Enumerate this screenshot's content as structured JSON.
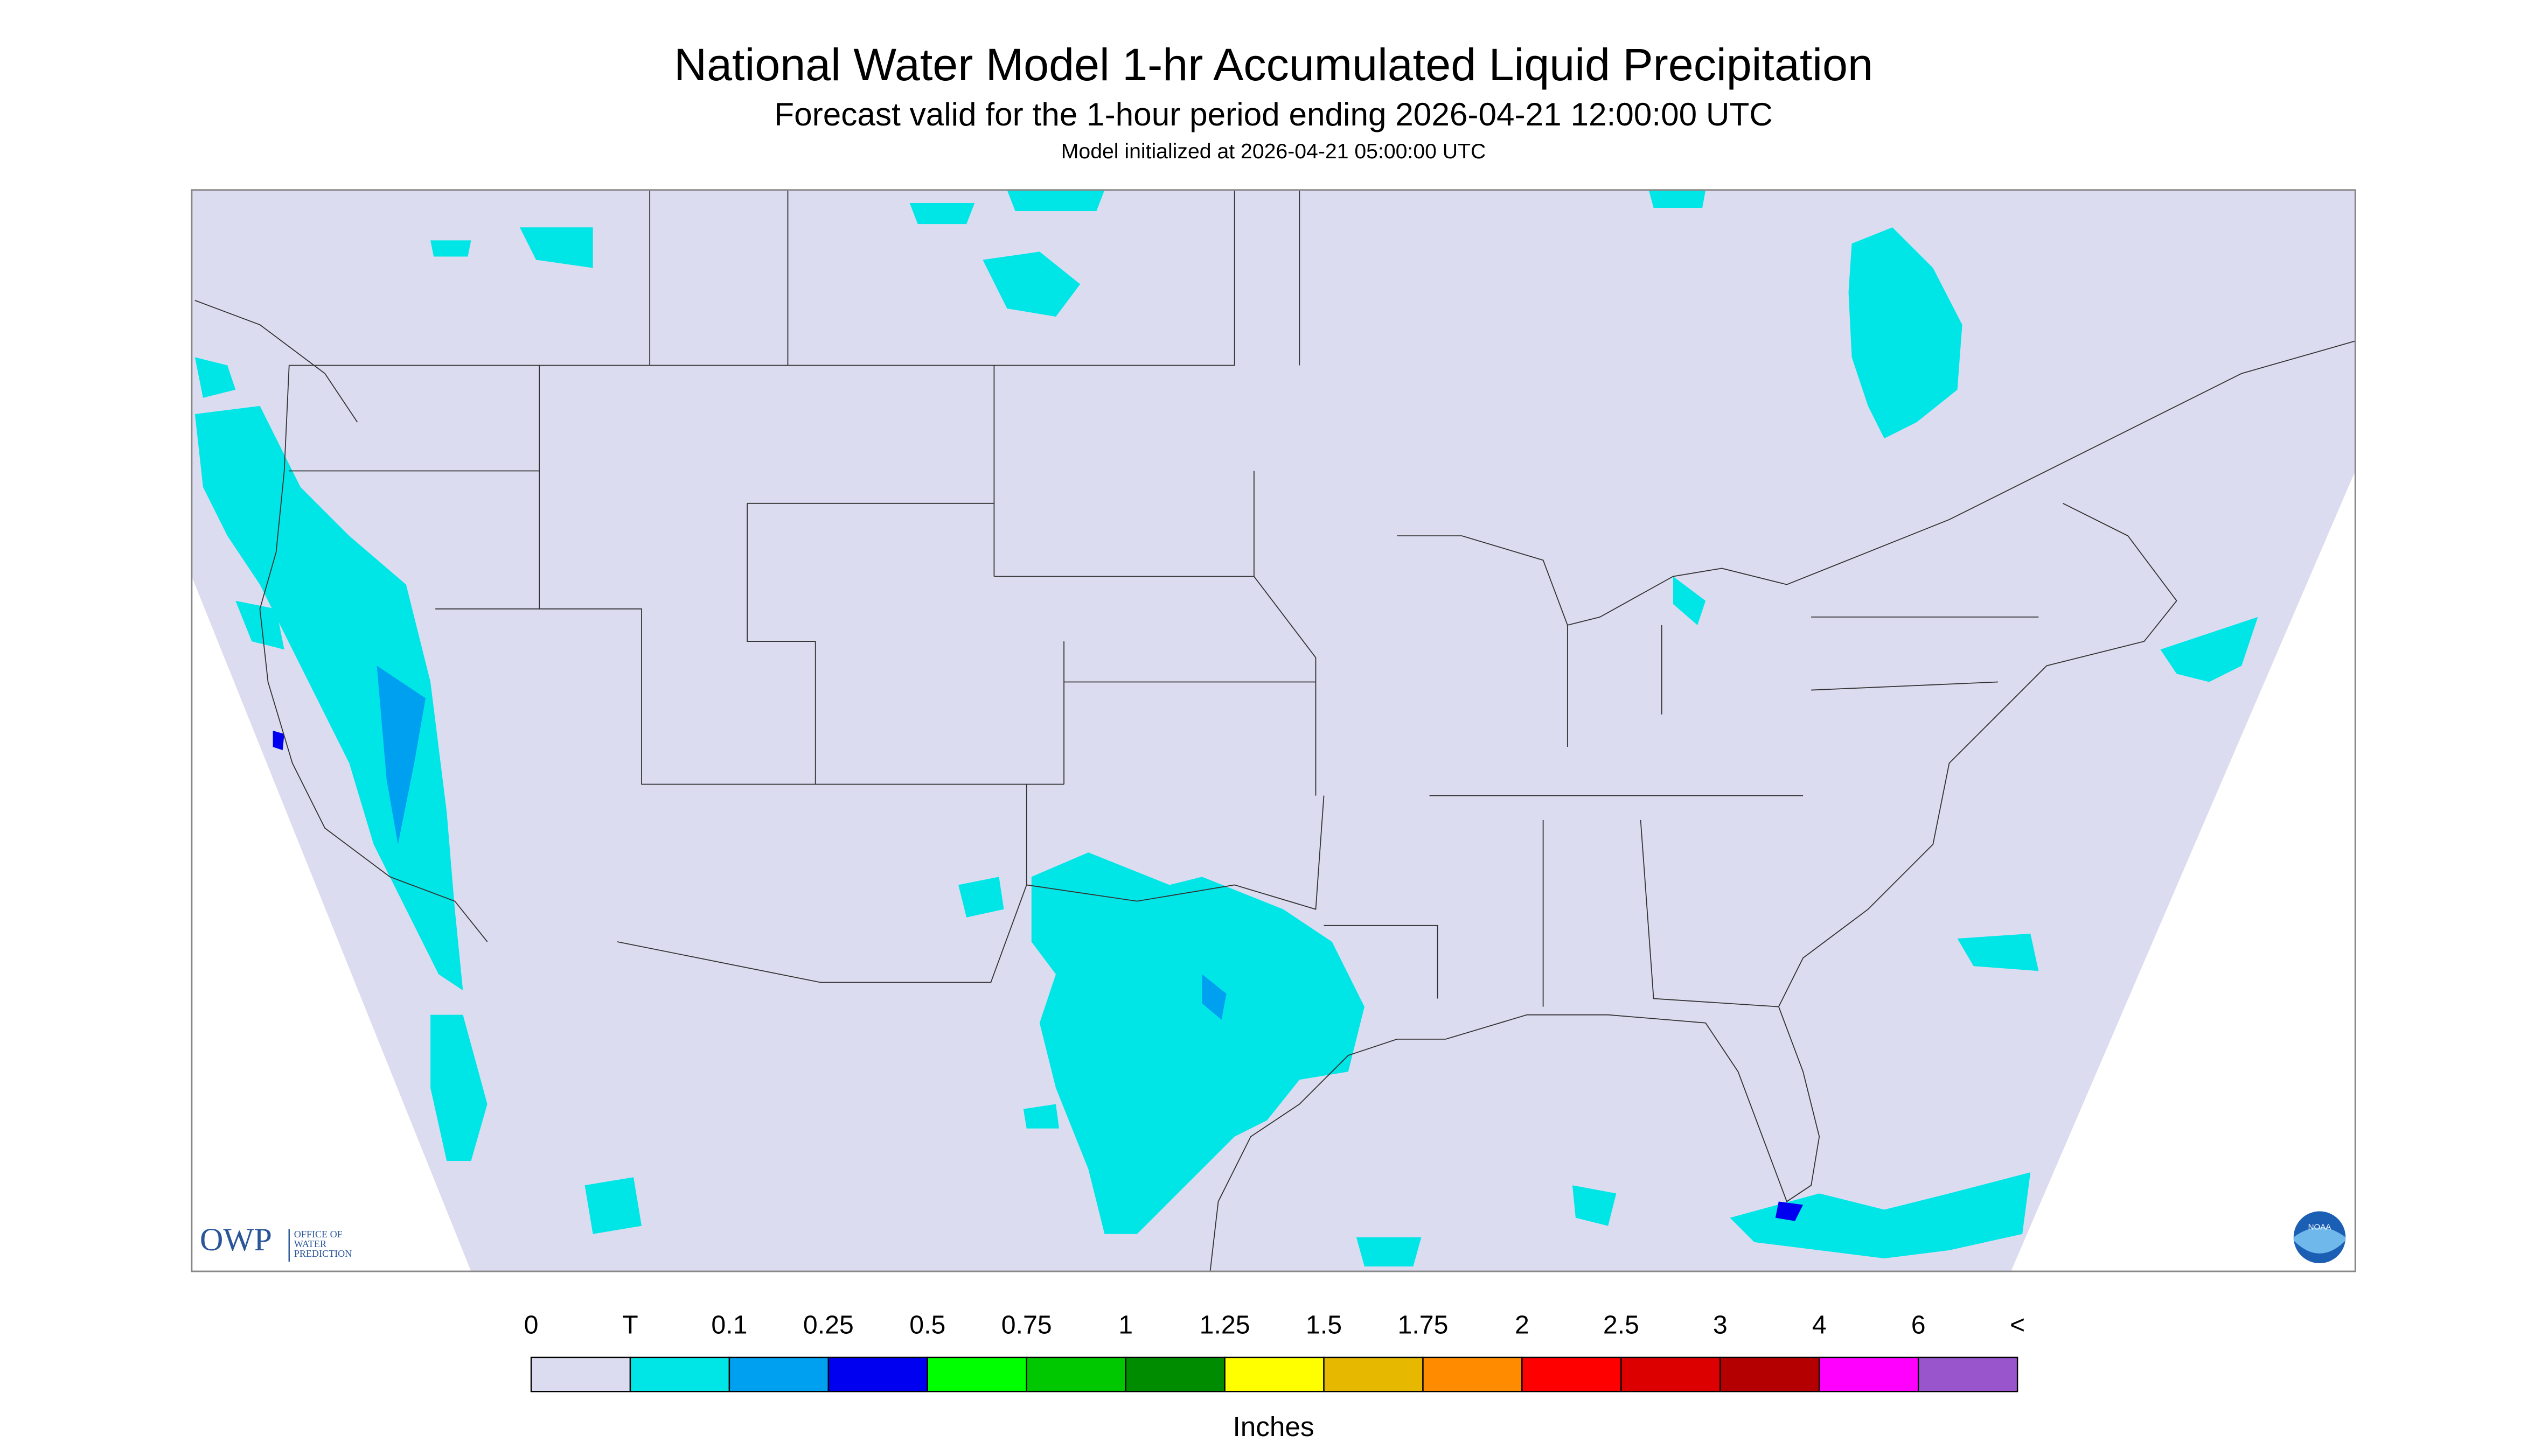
{
  "header": {
    "title": "National Water Model 1-hr Accumulated Liquid Precipitation",
    "subtitle": "Forecast valid for the 1-hour period ending 2026-04-21 12:00:00 UTC",
    "init": "Model initialized at 2026-04-21 05:00:00 UTC"
  },
  "logos": {
    "owp": "OWP",
    "owp_text": [
      "OFFICE OF",
      "WATER",
      "PREDICTION"
    ],
    "noaa": "NOAA"
  },
  "legend": {
    "labels": [
      "0",
      "T",
      "0.1",
      "0.25",
      "0.5",
      "0.75",
      "1",
      "1.25",
      "1.5",
      "1.75",
      "2",
      "2.5",
      "3",
      "4",
      "6",
      "<"
    ],
    "colors": [
      "#dcdcf0",
      "#00e6e6",
      "#00a0f0",
      "#0000f0",
      "#00ff00",
      "#00c800",
      "#008c00",
      "#ffff00",
      "#e6b800",
      "#ff8c00",
      "#ff0000",
      "#dc0000",
      "#b40000",
      "#ff00ff",
      "#9955cc"
    ],
    "unit": "Inches"
  }
}
